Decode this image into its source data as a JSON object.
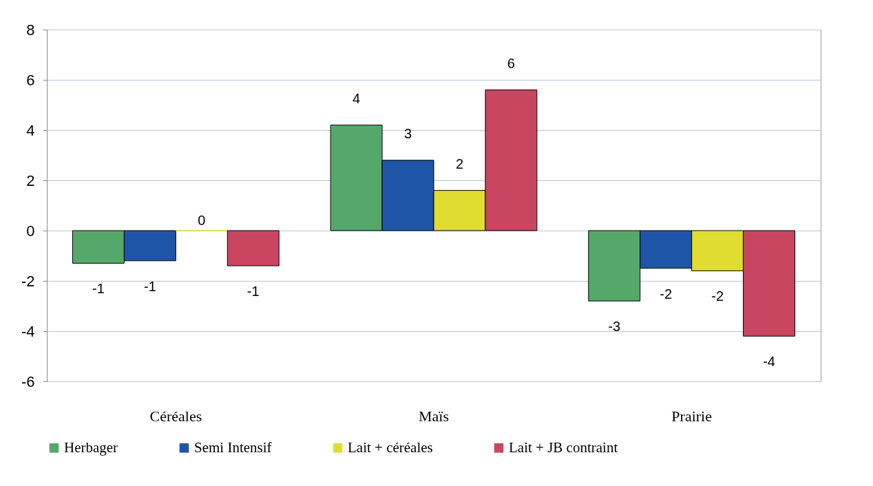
{
  "chart_data": {
    "type": "bar",
    "categories": [
      "Céréales",
      "Maïs",
      "Prairie"
    ],
    "series": [
      {
        "name": "Herbager",
        "color": "#55a86a",
        "values": [
          -1.3,
          4.2,
          -2.8
        ],
        "value_labels": [
          "-1",
          "4",
          "-3"
        ]
      },
      {
        "name": "Semi Intensif",
        "color": "#1f55a8",
        "values": [
          -1.2,
          2.8,
          -1.5
        ],
        "value_labels": [
          "-1",
          "3",
          "-2"
        ]
      },
      {
        "name": "Lait + céréales",
        "color": "#e0dc30",
        "values": [
          0,
          1.6,
          -1.6
        ],
        "value_labels": [
          "0",
          "2",
          "-2"
        ]
      },
      {
        "name": "Lait + JB contraint",
        "color": "#c94560",
        "values": [
          -1.4,
          5.6,
          -4.2
        ],
        "value_labels": [
          "-1",
          "6",
          "-4"
        ]
      }
    ],
    "ylim": [
      -6,
      8
    ],
    "yticks": [
      -6,
      -4,
      -2,
      0,
      2,
      4,
      6,
      8
    ],
    "grid": "y",
    "legend": "bottom"
  }
}
